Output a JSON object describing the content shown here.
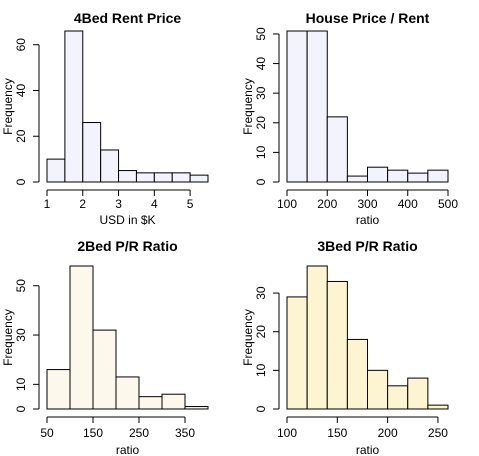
{
  "chart_data": [
    {
      "type": "bar",
      "title": "4Bed Rent Price",
      "xlabel": "USD in $K",
      "ylabel": "Frequency",
      "bin_edges": [
        1.0,
        1.5,
        2.0,
        2.5,
        3.0,
        3.5,
        4.0,
        4.5,
        5.0,
        5.5
      ],
      "values": [
        10,
        66,
        26,
        14,
        5,
        4,
        4,
        4,
        3
      ],
      "xlim": [
        1.0,
        5.5
      ],
      "ylim": [
        0,
        66
      ],
      "xticks": [
        1,
        2,
        3,
        4,
        5
      ],
      "xtick_labels": [
        "1",
        "2",
        "3",
        "4",
        "5"
      ],
      "yticks": [
        0,
        20,
        40,
        60
      ],
      "ytick_labels": [
        "0",
        "20",
        "40",
        "60"
      ],
      "fill": "#f3f3fd"
    },
    {
      "type": "bar",
      "title": "House Price / Rent",
      "xlabel": "ratio",
      "ylabel": "Frequency",
      "bin_edges": [
        100,
        150,
        200,
        250,
        300,
        350,
        400,
        450,
        500
      ],
      "values": [
        51,
        51,
        22,
        2,
        5,
        4,
        3,
        4
      ],
      "xlim": [
        100,
        500
      ],
      "ylim": [
        0,
        51
      ],
      "xticks": [
        100,
        200,
        300,
        400,
        500
      ],
      "xtick_labels": [
        "100",
        "200",
        "300",
        "400",
        "500"
      ],
      "yticks": [
        0,
        10,
        20,
        30,
        40,
        50
      ],
      "ytick_labels": [
        "0",
        "10",
        "20",
        "30",
        "40",
        "50"
      ],
      "fill": "#f3f3fd"
    },
    {
      "type": "bar",
      "title": "2Bed P/R Ratio",
      "xlabel": "ratio",
      "ylabel": "Frequency",
      "bin_edges": [
        50,
        100,
        150,
        200,
        250,
        300,
        350,
        400
      ],
      "values": [
        16,
        58,
        32,
        13,
        5,
        6,
        1
      ],
      "xlim": [
        50,
        400
      ],
      "ylim": [
        0,
        58
      ],
      "xticks": [
        50,
        150,
        250,
        350
      ],
      "xtick_labels": [
        "50",
        "150",
        "250",
        "350"
      ],
      "yticks": [
        0,
        10,
        30,
        50
      ],
      "ytick_labels": [
        "0",
        "10",
        "30",
        "50"
      ],
      "fill": "#fdf8ec"
    },
    {
      "type": "bar",
      "title": "3Bed P/R Ratio",
      "xlabel": "ratio",
      "ylabel": "Frequency",
      "bin_edges": [
        100,
        120,
        140,
        160,
        180,
        200,
        220,
        240,
        260
      ],
      "values": [
        29,
        37,
        33,
        18,
        10,
        6,
        8,
        1
      ],
      "xlim": [
        100,
        260
      ],
      "ylim": [
        0,
        37
      ],
      "xticks": [
        100,
        150,
        200,
        250
      ],
      "xtick_labels": [
        "100",
        "150",
        "200",
        "250"
      ],
      "yticks": [
        0,
        10,
        20,
        30
      ],
      "ytick_labels": [
        "0",
        "10",
        "20",
        "30"
      ],
      "fill": "#fdf5d2"
    }
  ]
}
